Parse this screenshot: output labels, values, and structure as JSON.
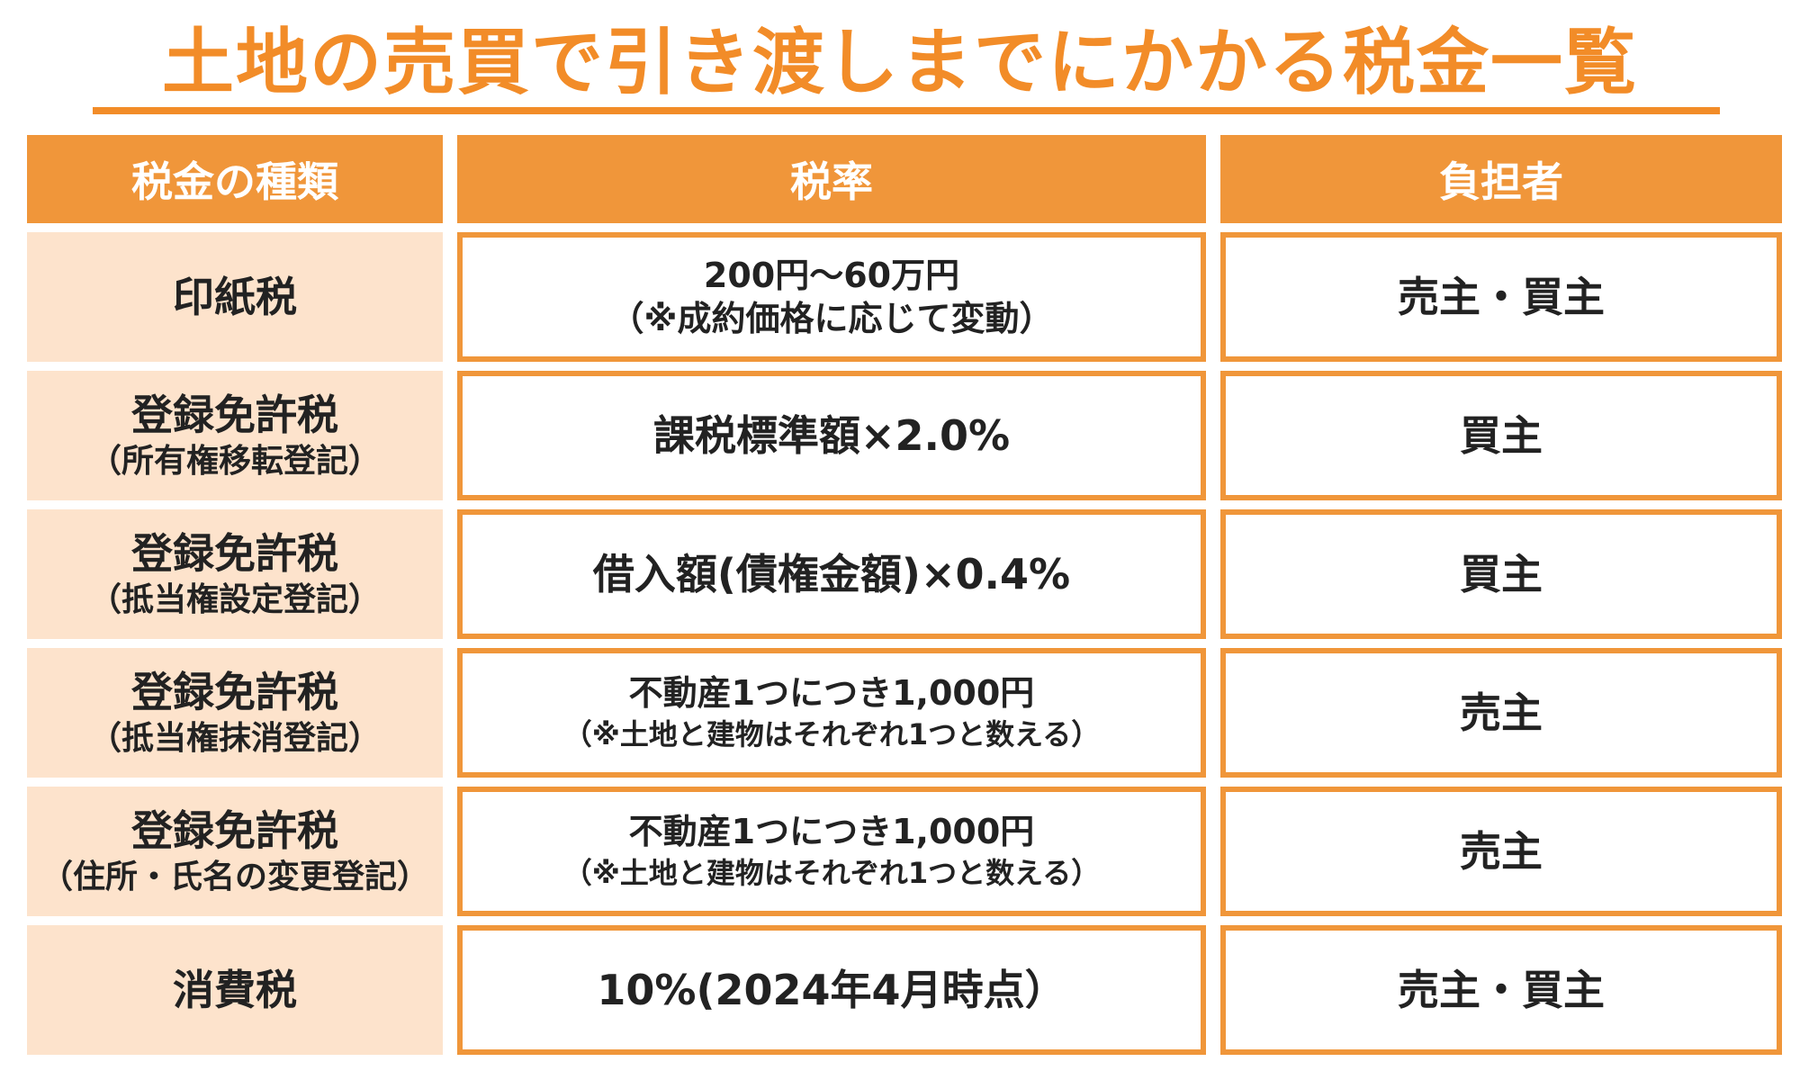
{
  "title": "土地の売買で引き渡しまでにかかる税金一覧",
  "colors": {
    "accent": "#f28c28",
    "header_fill": "#f0963a",
    "type_fill": "#fde3cc"
  },
  "headers": {
    "type": "税金の種類",
    "rate": "税率",
    "payer": "負担者"
  },
  "rows": [
    {
      "type_main": "印紙税",
      "rate_line1": "200円〜60万円",
      "rate_line2": "（※成約価格に応じて変動）",
      "payer": "売主・買主"
    },
    {
      "type_main": "登録免許税",
      "type_sub": "（所有権移転登記）",
      "rate_line1": "課税標準額×2.0%",
      "payer": "買主"
    },
    {
      "type_main": "登録免許税",
      "type_sub": "（抵当権設定登記）",
      "rate_line1": "借入額(債権金額)×0.4%",
      "payer": "買主"
    },
    {
      "type_main": "登録免許税",
      "type_sub": "（抵当権抹消登記）",
      "rate_line1": "不動産1つにつき1,000円",
      "rate_line2": "（※土地と建物はそれぞれ1つと数える）",
      "payer": "売主"
    },
    {
      "type_main": "登録免許税",
      "type_sub": "（住所・氏名の変更登記）",
      "rate_line1": "不動産1つにつき1,000円",
      "rate_line2": "（※土地と建物はそれぞれ1つと数える）",
      "payer": "売主"
    },
    {
      "type_main": "消費税",
      "rate_line1": "10%(2024年4月時点）",
      "payer": "売主・買主"
    }
  ]
}
